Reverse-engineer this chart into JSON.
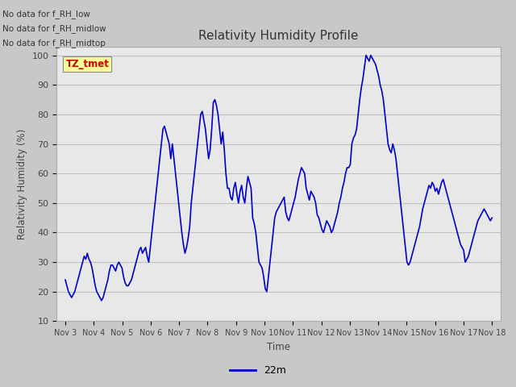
{
  "title": "Relativity Humidity Profile",
  "xlabel": "Time",
  "ylabel": "Relativity Humidity (%)",
  "ylim": [
    10,
    103
  ],
  "yticks": [
    10,
    20,
    30,
    40,
    50,
    60,
    70,
    80,
    90,
    100
  ],
  "line_color": "#0000CC",
  "line_width": 1.2,
  "legend_label": "22m",
  "annotations": [
    "No data for f_RH_low",
    "No data for f_RH_midlow",
    "No data for f_RH_midtop"
  ],
  "tz_label": "TZ_tmet",
  "fig_bg_color": "#C8C8C8",
  "plot_bg_color": "#E8E8E8",
  "x_tick_labels": [
    "Nov 3",
    "Nov 4",
    "Nov 5",
    "Nov 6",
    "Nov 7",
    "Nov 8",
    "Nov 9",
    "Nov 10",
    "Nov 11",
    "Nov 12",
    "Nov 13",
    "Nov 14",
    "Nov 15",
    "Nov 16",
    "Nov 17",
    "Nov 18"
  ],
  "x_tick_positions": [
    0,
    1,
    2,
    3,
    4,
    5,
    6,
    7,
    8,
    9,
    10,
    11,
    12,
    13,
    14,
    15
  ],
  "rh_values": [
    24,
    22,
    20,
    19,
    18,
    19,
    20,
    22,
    24,
    26,
    28,
    30,
    32,
    31,
    33,
    31,
    30,
    28,
    25,
    22,
    20,
    19,
    18,
    17,
    18,
    20,
    22,
    24,
    27,
    29,
    29,
    28,
    27,
    29,
    30,
    29,
    28,
    25,
    23,
    22,
    22,
    23,
    24,
    26,
    28,
    30,
    32,
    34,
    35,
    33,
    34,
    35,
    32,
    30,
    35,
    40,
    45,
    50,
    55,
    60,
    65,
    70,
    75,
    76,
    74,
    72,
    70,
    65,
    70,
    65,
    60,
    55,
    50,
    45,
    40,
    36,
    33,
    35,
    38,
    42,
    50,
    55,
    60,
    65,
    70,
    75,
    80,
    81,
    78,
    75,
    70,
    65,
    68,
    75,
    84,
    85,
    83,
    80,
    75,
    70,
    74,
    68,
    60,
    55,
    55,
    52,
    51,
    55,
    57,
    53,
    50,
    54,
    56,
    52,
    50,
    55,
    59,
    57,
    55,
    45,
    43,
    40,
    35,
    30,
    29,
    28,
    25,
    21,
    20,
    25,
    30,
    35,
    40,
    45,
    47,
    48,
    49,
    50,
    51,
    52,
    47,
    45,
    44,
    46,
    48,
    50,
    52,
    55,
    58,
    60,
    62,
    61,
    60,
    55,
    53,
    51,
    54,
    53,
    52,
    50,
    46,
    45,
    43,
    41,
    40,
    42,
    44,
    43,
    42,
    40,
    41,
    43,
    45,
    47,
    50,
    52,
    55,
    57,
    60,
    62,
    62,
    63,
    70,
    72,
    73,
    75,
    80,
    85,
    89,
    92,
    96,
    100,
    99,
    98,
    100,
    99,
    98,
    97,
    95,
    93,
    90,
    88,
    85,
    80,
    75,
    70,
    68,
    67,
    70,
    68,
    65,
    60,
    55,
    50,
    45,
    40,
    35,
    30,
    29,
    30,
    32,
    34,
    36,
    38,
    40,
    42,
    45,
    48,
    50,
    52,
    54,
    56,
    55,
    57,
    56,
    54,
    55,
    53,
    55,
    57,
    58,
    56,
    54,
    52,
    50,
    48,
    46,
    44,
    42,
    40,
    38,
    36,
    35,
    34,
    30,
    31,
    32,
    34,
    36,
    38,
    40,
    42,
    44,
    45,
    46,
    47,
    48,
    47,
    46,
    45,
    44,
    45
  ]
}
